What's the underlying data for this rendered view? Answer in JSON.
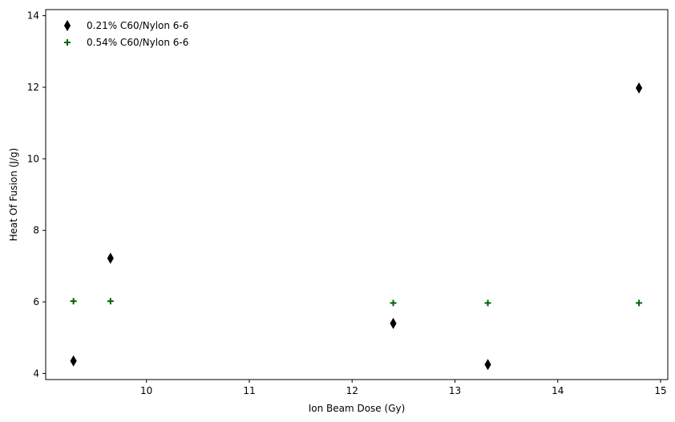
{
  "chart_data": {
    "type": "scatter",
    "title": "",
    "xlabel": "Ion Beam Dose (Gy)",
    "ylabel": "Heat Of Fusion (J/g)",
    "xlim": [
      9.02,
      15.07
    ],
    "ylim": [
      3.83,
      14.17
    ],
    "xticks": [
      10,
      11,
      12,
      13,
      14,
      15
    ],
    "yticks": [
      4,
      6,
      8,
      10,
      12,
      14
    ],
    "grid": false,
    "legend_position": "top-left",
    "series": [
      {
        "name": "0.21% C60/Nylon 6-6",
        "marker": "thin-diamond",
        "color": "#000000",
        "x": [
          9.29,
          9.65,
          12.4,
          13.32,
          14.79
        ],
        "y": [
          4.35,
          7.22,
          5.4,
          4.25,
          11.98
        ]
      },
      {
        "name": "0.54% C60/Nylon 6-6",
        "marker": "plus",
        "color": "#006400",
        "x": [
          9.29,
          9.65,
          12.4,
          13.32,
          14.79
        ],
        "y": [
          6.02,
          6.02,
          5.97,
          5.97,
          5.97
        ]
      }
    ]
  }
}
